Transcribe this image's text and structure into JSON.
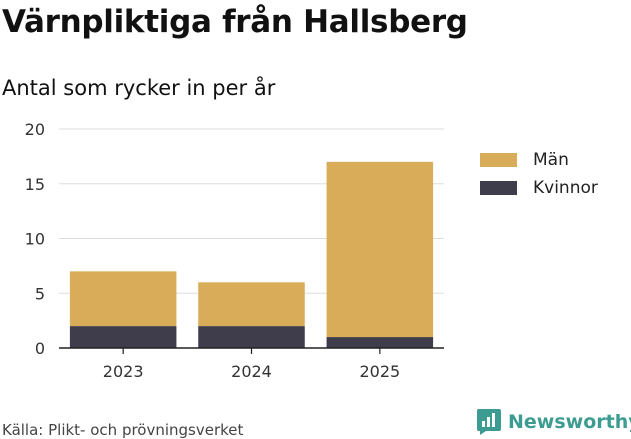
{
  "title": "Värnpliktiga från Hallsberg",
  "subtitle": "Antal som rycker in per år",
  "source": "Källa: Plikt- och prövningsverket",
  "brand": {
    "name": "Newsworthy",
    "icon": "newsworthy-logo-icon",
    "color": "#3d9c92"
  },
  "chart_data": {
    "type": "bar",
    "stacked": true,
    "categories": [
      "2023",
      "2024",
      "2025"
    ],
    "series": [
      {
        "name": "Kvinnor",
        "values": [
          2,
          2,
          1
        ],
        "color": "#3f3d4b"
      },
      {
        "name": "Män",
        "values": [
          5,
          4,
          16
        ],
        "color": "#d9ac59"
      }
    ],
    "legend": [
      {
        "name": "Män",
        "color": "#d9ac59"
      },
      {
        "name": "Kvinnor",
        "color": "#3f3d4b"
      }
    ],
    "yticks": [
      0,
      5,
      10,
      15,
      20
    ],
    "ylim": [
      0,
      20
    ],
    "grid": true,
    "legend_position": "right"
  }
}
